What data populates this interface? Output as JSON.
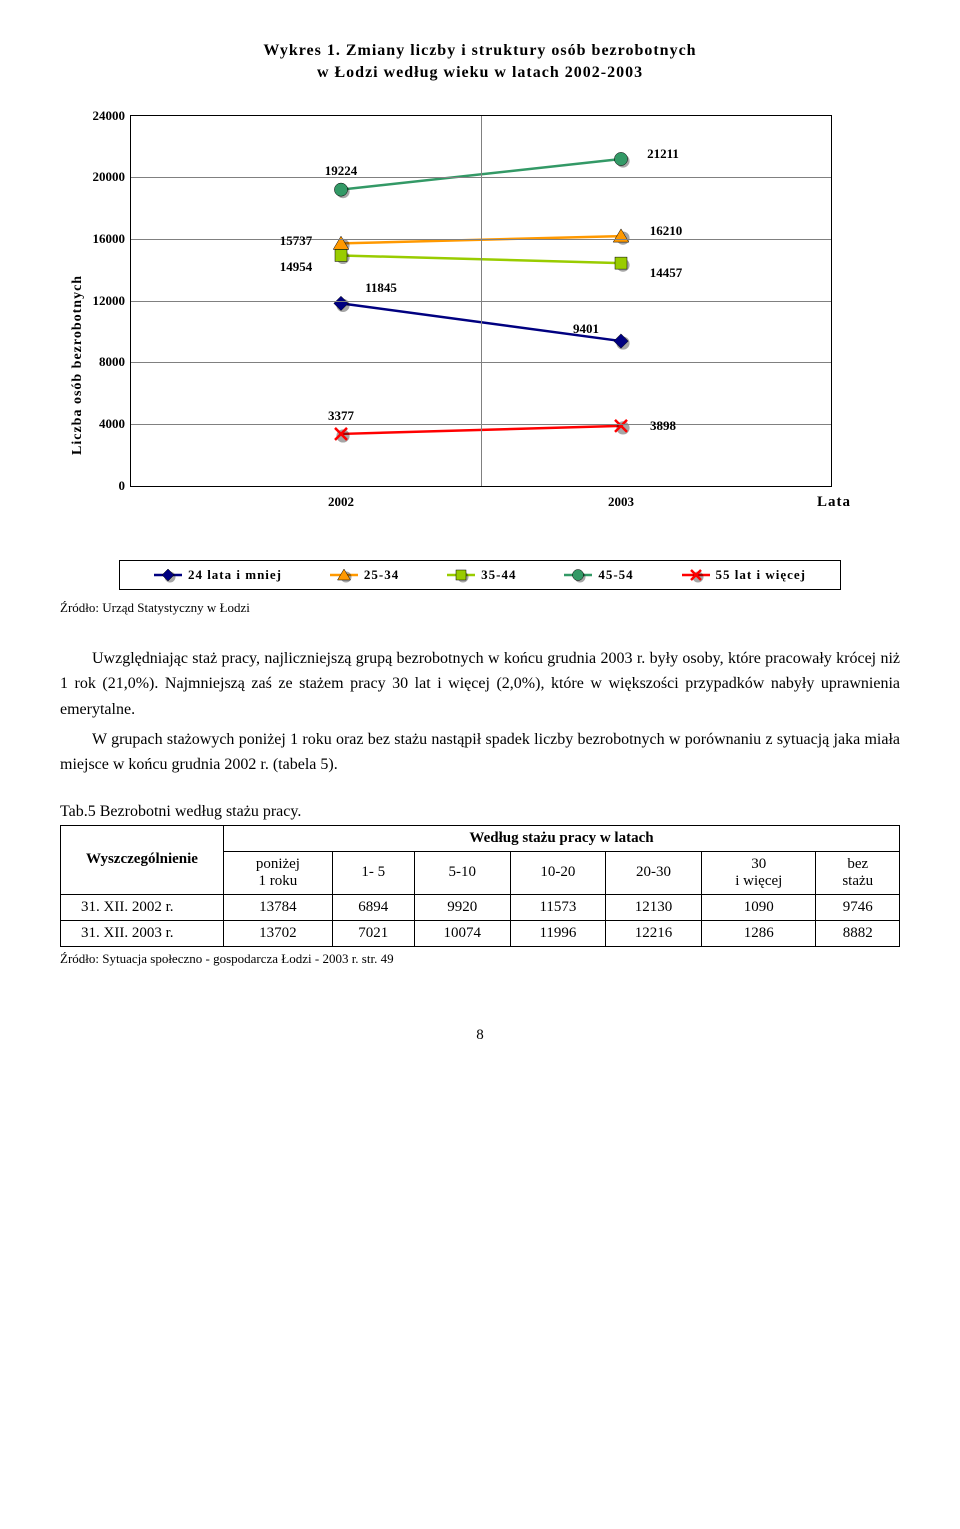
{
  "chart": {
    "title_l1": "Wykres 1. Zmiany liczby i struktury osób bezrobotnych",
    "title_l2": "w Łodzi według wieku w latach 2002-2003",
    "ylabel": "Liczba osób bezrobotnych",
    "xlabel": "Lata",
    "ylim": [
      0,
      24000
    ],
    "ytick_step": 4000,
    "yticks": [
      "0",
      "4000",
      "8000",
      "12000",
      "16000",
      "20000",
      "24000"
    ],
    "x_categories": [
      "2002",
      "2003"
    ],
    "grid_color": "#808080",
    "series": [
      {
        "name": "24 lata i mniej",
        "color": "#000080",
        "marker": "diamond",
        "values": [
          11845,
          9401
        ]
      },
      {
        "name": "25-34",
        "color": "#ff9900",
        "marker": "triangle",
        "values": [
          15737,
          16210
        ]
      },
      {
        "name": "35-44",
        "color": "#99cc00",
        "marker": "square",
        "values": [
          14954,
          14457
        ]
      },
      {
        "name": "45-54",
        "color": "#339966",
        "marker": "circle",
        "values": [
          19224,
          21211
        ]
      },
      {
        "name": "55 lat i więcej",
        "color": "#ff0000",
        "marker": "cross",
        "values": [
          3377,
          3898
        ]
      }
    ],
    "line_width": 2.5,
    "marker_size": 12,
    "label_offsets": {
      "11845": [
        40,
        -15
      ],
      "9401": [
        -35,
        -12
      ],
      "15737": [
        -45,
        -2
      ],
      "16210": [
        45,
        -5
      ],
      "14954": [
        -45,
        12
      ],
      "14457": [
        45,
        10
      ],
      "19224": [
        0,
        -18
      ],
      "21211": [
        42,
        -5
      ],
      "3377": [
        0,
        -18
      ],
      "3898": [
        42,
        0
      ]
    }
  },
  "source1": "Źródło: Urząd Statystyczny w Łodzi",
  "para1": "Uwzględniając staż pracy, najliczniejszą grupą bezrobotnych w końcu grudnia 2003 r. były osoby, które pracowały krócej niż 1 rok (21,0%). Najmniejszą zaś ze stażem pracy 30 lat i więcej (2,0%), które w większości przypadków nabyły uprawnienia emerytalne.",
  "para2": "W grupach stażowych poniżej 1 roku oraz bez stażu nastąpił spadek liczby bezrobotnych w porównaniu z sytuacją jaka miała miejsce w końcu grudnia 2002 r. (tabela 5).",
  "table": {
    "caption": "Tab.5 Bezrobotni według stażu pracy.",
    "spanner": "Według stażu pracy w latach",
    "row_head": "Wyszczególnienie",
    "cols": [
      "poniżej 1 roku",
      "1- 5",
      "5-10",
      "10-20",
      "20-30",
      "30 i więcej",
      "bez stażu"
    ],
    "rows": [
      {
        "label": "31. XII. 2002 r.",
        "vals": [
          "13784",
          "6894",
          "9920",
          "11573",
          "12130",
          "1090",
          "9746"
        ]
      },
      {
        "label": "31. XII. 2003 r.",
        "vals": [
          "13702",
          "7021",
          "10074",
          "11996",
          "12216",
          "1286",
          "8882"
        ]
      }
    ]
  },
  "source2": "Źródło: Sytuacja społeczno - gospodarcza Łodzi - 2003 r. str. 49",
  "page": "8"
}
